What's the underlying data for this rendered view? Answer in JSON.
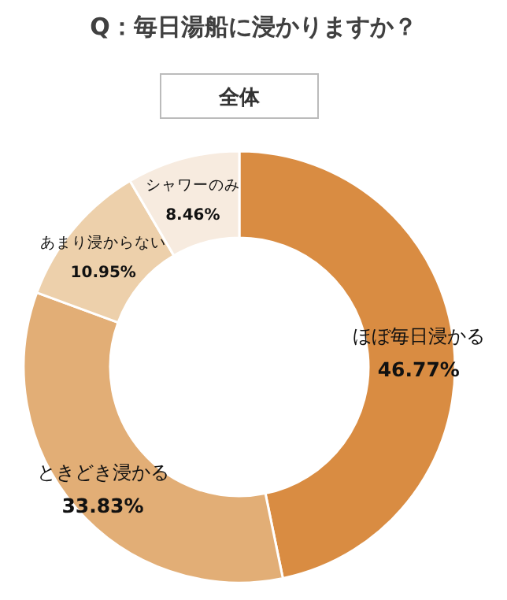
{
  "chart_data": {
    "type": "donut",
    "title": "Q：毎日湯船に浸かりますか？",
    "subtitle": "全体",
    "categories": [
      "ほぼ毎日浸かる",
      "ときどき浸かる",
      "あまり浸からない",
      "シャワーのみ"
    ],
    "values": [
      46.77,
      33.83,
      10.95,
      8.46
    ],
    "colors": [
      "#d98c42",
      "#e2ae76",
      "#edd0ab",
      "#f7ebdf"
    ],
    "value_labels": [
      "46.77%",
      "33.83%",
      "10.95%",
      "8.46%"
    ]
  }
}
